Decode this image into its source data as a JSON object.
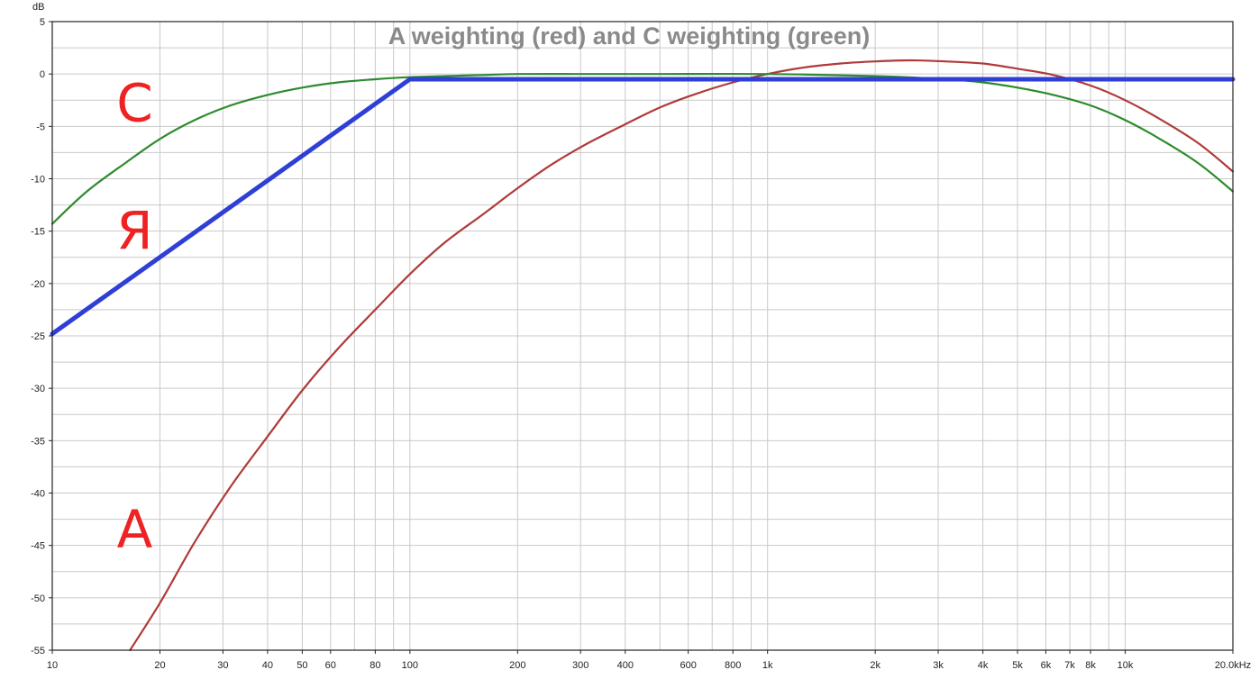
{
  "chart_data": {
    "type": "line",
    "title": "A weighting (red) and C weighting (green)",
    "ylabel": "dB",
    "x_unit": "kHz",
    "x_scale": "log",
    "xlim": [
      10,
      20000
    ],
    "ylim": [
      -55,
      5
    ],
    "grid": true,
    "y_ticks": [
      5,
      0,
      -5,
      -10,
      -15,
      -20,
      -25,
      -30,
      -35,
      -40,
      -45,
      -50,
      -55
    ],
    "y_tick_labels": [
      "5",
      "0",
      "-5",
      "-10",
      "-15",
      "-20",
      "-25",
      "-30",
      "-35",
      "-40",
      "-45",
      "-50",
      "-55"
    ],
    "x_ticks": [
      {
        "value": 10,
        "label": "10"
      },
      {
        "value": 20,
        "label": "20"
      },
      {
        "value": 30,
        "label": "30"
      },
      {
        "value": 40,
        "label": "40"
      },
      {
        "value": 50,
        "label": "50"
      },
      {
        "value": 60,
        "label": "60"
      },
      {
        "value": 80,
        "label": "80"
      },
      {
        "value": 100,
        "label": "100"
      },
      {
        "value": 200,
        "label": "200"
      },
      {
        "value": 300,
        "label": "300"
      },
      {
        "value": 400,
        "label": "400"
      },
      {
        "value": 600,
        "label": "600"
      },
      {
        "value": 800,
        "label": "800"
      },
      {
        "value": 1000,
        "label": "1k"
      },
      {
        "value": 2000,
        "label": "2k"
      },
      {
        "value": 3000,
        "label": "3k"
      },
      {
        "value": 4000,
        "label": "4k"
      },
      {
        "value": 5000,
        "label": "5k"
      },
      {
        "value": 6000,
        "label": "6k"
      },
      {
        "value": 7000,
        "label": "7k"
      },
      {
        "value": 8000,
        "label": "8k"
      },
      {
        "value": 10000,
        "label": "10k"
      },
      {
        "value": 20000,
        "label": "20.0kHz"
      }
    ],
    "series": [
      {
        "color": "#b03a3a",
        "x": [
          16.5,
          20,
          25,
          31.5,
          40,
          50,
          63,
          80,
          100,
          125,
          160,
          200,
          250,
          315,
          400,
          500,
          630,
          800,
          1000,
          1250,
          1600,
          2000,
          2500,
          3150,
          4000,
          5000,
          6300,
          8000,
          10000,
          12500,
          16000,
          20000
        ],
        "y": [
          -55.0,
          -50.5,
          -44.7,
          -39.4,
          -34.6,
          -30.2,
          -26.2,
          -22.5,
          -19.1,
          -16.1,
          -13.4,
          -10.9,
          -8.6,
          -6.6,
          -4.8,
          -3.2,
          -1.9,
          -0.8,
          0.0,
          0.6,
          1.0,
          1.2,
          1.3,
          1.2,
          1.0,
          0.5,
          -0.1,
          -1.1,
          -2.5,
          -4.3,
          -6.6,
          -9.3
        ]
      },
      {
        "color": "#2e8b2e",
        "x": [
          10,
          12.5,
          16,
          20,
          25,
          31.5,
          40,
          50,
          63,
          80,
          100,
          125,
          160,
          200,
          315,
          500,
          1000,
          2000,
          3150,
          4000,
          5000,
          6300,
          8000,
          10000,
          12500,
          16000,
          20000
        ],
        "y": [
          -14.3,
          -11.2,
          -8.5,
          -6.2,
          -4.4,
          -3.0,
          -2.0,
          -1.3,
          -0.8,
          -0.5,
          -0.3,
          -0.2,
          -0.1,
          0.0,
          0.0,
          0.0,
          0.0,
          -0.2,
          -0.5,
          -0.8,
          -1.3,
          -2.0,
          -3.0,
          -4.4,
          -6.2,
          -8.5,
          -11.2
        ]
      },
      {
        "color": "#2f3fd6",
        "x": [
          10,
          100,
          20000
        ],
        "y": [
          -24.8,
          -0.5,
          -0.5
        ]
      }
    ],
    "annotations": [
      {
        "text": "C",
        "x": 17,
        "y": -2.8,
        "color": "#ee2222"
      },
      {
        "text": "Я",
        "x": 17,
        "y": -15.0,
        "color": "#ee2222"
      },
      {
        "text": "A",
        "x": 17,
        "y": -43.5,
        "color": "#ee2222"
      }
    ]
  }
}
